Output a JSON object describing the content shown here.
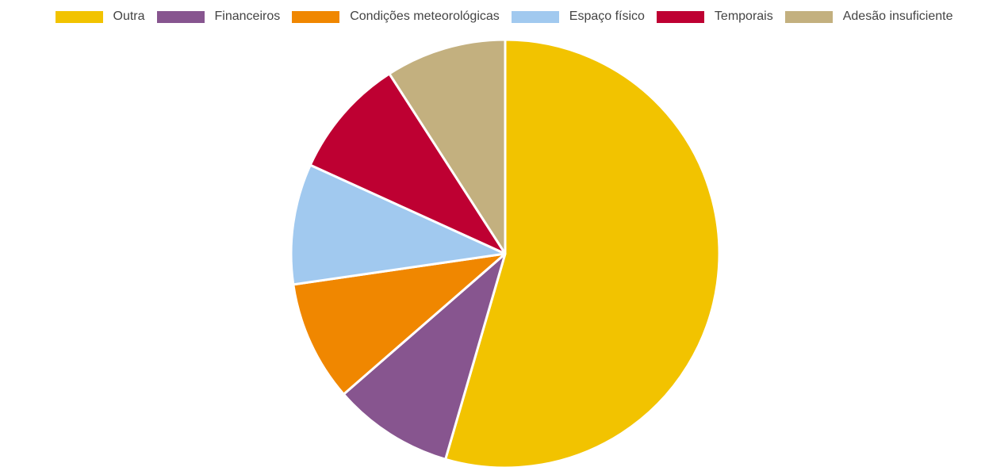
{
  "chart_data": {
    "type": "pie",
    "title": "",
    "categories": [
      "Outra",
      "Financeiros",
      "Condições meteorológicas",
      "Espaço físico",
      "Temporais",
      "Adesão insuficiente"
    ],
    "values": [
      54.5,
      9.1,
      9.1,
      9.1,
      9.1,
      9.1
    ],
    "colors": [
      "#f2c300",
      "#87558f",
      "#f08700",
      "#a1c9ef",
      "#be0032",
      "#c3b07f"
    ],
    "legend_position": "top",
    "start_angle_deg": 0,
    "direction": "clockwise"
  },
  "legend": {
    "items": [
      {
        "label": "Outra",
        "color": "#f2c300"
      },
      {
        "label": "Financeiros",
        "color": "#87558f"
      },
      {
        "label": "Condições meteorológicas",
        "color": "#f08700"
      },
      {
        "label": "Espaço físico",
        "color": "#a1c9ef"
      },
      {
        "label": "Temporais",
        "color": "#be0032"
      },
      {
        "label": "Adesão insuficiente",
        "color": "#c3b07f"
      }
    ]
  }
}
